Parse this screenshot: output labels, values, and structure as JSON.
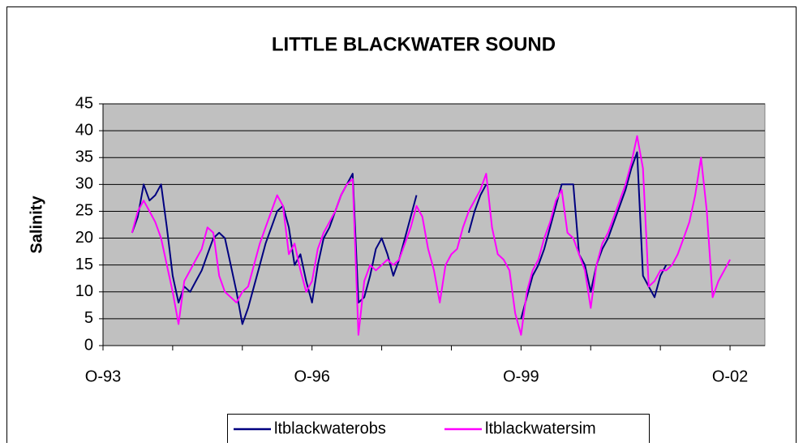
{
  "chart_data": {
    "type": "line",
    "title": "LITTLE BLACKWATER SOUND",
    "y_label": "Salinity",
    "x": [
      "1994-03",
      "1994-04",
      "1994-05",
      "1994-06",
      "1994-07",
      "1994-08",
      "1994-09",
      "1994-10",
      "1994-11",
      "1994-12",
      "1995-01",
      "1995-02",
      "1995-03",
      "1995-04",
      "1995-05",
      "1995-06",
      "1995-07",
      "1995-08",
      "1995-09",
      "1995-10",
      "1995-11",
      "1995-12",
      "1996-01",
      "1996-02",
      "1996-03",
      "1996-04",
      "1996-05",
      "1996-06",
      "1996-07",
      "1996-08",
      "1996-09",
      "1996-10",
      "1996-11",
      "1996-12",
      "1997-01",
      "1997-02",
      "1997-03",
      "1997-04",
      "1997-05",
      "1997-06",
      "1997-07",
      "1997-08",
      "1997-09",
      "1997-10",
      "1997-11",
      "1997-12",
      "1998-01",
      "1998-02",
      "1998-03",
      "1998-04",
      "1998-05",
      "1998-06",
      "1998-07",
      "1998-08",
      "1998-09",
      "1998-10",
      "1998-11",
      "1998-12",
      "1999-01",
      "1999-02",
      "1999-03",
      "1999-04",
      "1999-05",
      "1999-06",
      "1999-07",
      "1999-08",
      "1999-09",
      "1999-10",
      "1999-11",
      "1999-12",
      "2000-01",
      "2000-02",
      "2000-03",
      "2000-04",
      "2000-05",
      "2000-06",
      "2000-07",
      "2000-08",
      "2000-09",
      "2000-10",
      "2000-11",
      "2000-12",
      "2001-01",
      "2001-02",
      "2001-03",
      "2001-04",
      "2001-05",
      "2001-06",
      "2001-07",
      "2001-08",
      "2001-09",
      "2001-10",
      "2001-11",
      "2001-12",
      "2002-01",
      "2002-02",
      "2002-03",
      "2002-04",
      "2002-05",
      "2002-06",
      "2002-07",
      "2002-08",
      "2002-09",
      "2002-10"
    ],
    "series": [
      {
        "name": "ltblackwaterobs",
        "color": "#000080",
        "values": [
          21,
          24,
          30,
          27,
          28,
          30,
          22,
          13,
          8,
          11,
          10,
          12,
          14,
          17,
          20,
          21,
          20,
          15,
          10,
          4,
          7,
          11,
          15,
          19,
          22,
          25,
          26,
          22,
          15,
          17,
          12,
          8,
          15,
          20,
          22,
          25,
          28,
          30,
          32,
          8,
          9,
          13,
          18,
          20,
          17,
          13,
          16,
          20,
          24,
          28,
          null,
          null,
          null,
          null,
          null,
          null,
          null,
          null,
          21,
          25,
          28,
          30,
          null,
          null,
          null,
          null,
          null,
          5,
          9,
          13,
          15,
          18,
          22,
          26,
          30,
          30,
          30,
          17,
          15,
          10,
          15,
          18,
          20,
          23,
          26,
          29,
          33,
          36,
          13,
          11,
          9,
          13,
          15,
          null,
          null,
          null,
          null,
          null,
          null,
          null,
          null,
          null,
          null,
          null
        ]
      },
      {
        "name": "ltblackwatersim",
        "color": "#ff00ff",
        "values": [
          21,
          25,
          27,
          25,
          23,
          20,
          15,
          10,
          4,
          12,
          14,
          16,
          18,
          22,
          21,
          13,
          10,
          9,
          8,
          10,
          11,
          15,
          19,
          22,
          25,
          28,
          26,
          17,
          19,
          14,
          10,
          12,
          18,
          21,
          23,
          25,
          28,
          30,
          31,
          2,
          12,
          15,
          14,
          15,
          16,
          15,
          16,
          19,
          22,
          26,
          24,
          18,
          14,
          8,
          15,
          17,
          18,
          22,
          25,
          27,
          29,
          32,
          22,
          17,
          16,
          14,
          6,
          2,
          10,
          14,
          16,
          20,
          23,
          27,
          29,
          21,
          20,
          17,
          14,
          7,
          15,
          19,
          21,
          24,
          27,
          30,
          34,
          39,
          33,
          11,
          12,
          14,
          14,
          15,
          17,
          20,
          23,
          28,
          35,
          25,
          9,
          12,
          14,
          16
        ]
      }
    ],
    "xlim": [
      "1993-10",
      "2003-04"
    ],
    "xticks": [
      {
        "value": "1993-10",
        "label": "O-93"
      },
      {
        "value": "1994-10",
        "label": null
      },
      {
        "value": "1995-10",
        "label": null
      },
      {
        "value": "1996-10",
        "label": "O-96"
      },
      {
        "value": "1997-10",
        "label": null
      },
      {
        "value": "1998-10",
        "label": null
      },
      {
        "value": "1999-10",
        "label": "O-99"
      },
      {
        "value": "2000-10",
        "label": null
      },
      {
        "value": "2001-10",
        "label": null
      },
      {
        "value": "2002-10",
        "label": "O-02"
      }
    ],
    "ylim": [
      0,
      45
    ],
    "yticks": [
      0,
      5,
      10,
      15,
      20,
      25,
      30,
      35,
      40,
      45
    ],
    "grid": true,
    "legend": "bottom",
    "plot_background": "#c0c0c0"
  }
}
